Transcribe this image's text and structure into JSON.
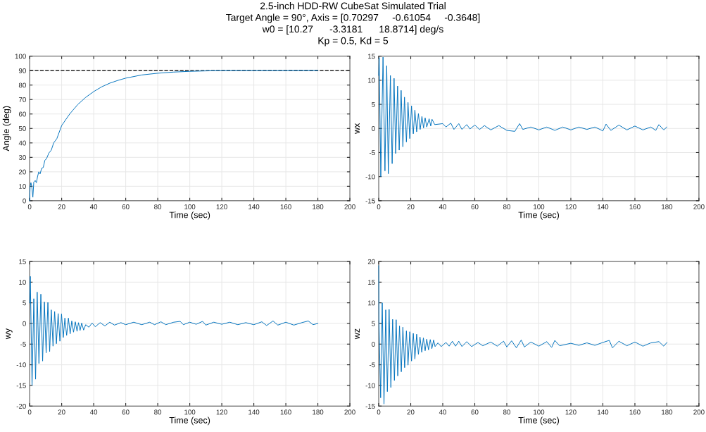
{
  "chart_data": [
    {
      "type": "line",
      "title": "2.5-inch HDD-RW CubeSat Simulated Trial\nTarget Angle = 90°, Axis = [0.70297     -0.61054     -0.3648]\nw0 = [10.27      -3.3181      18.8714] deg/s\nKp = 0.5, Kd = 5",
      "xlabel": "Time (sec)",
      "ylabel": "Angle (deg)",
      "xlim": [
        0,
        200
      ],
      "xticks": [
        0,
        20,
        40,
        60,
        80,
        100,
        120,
        140,
        160,
        180,
        200
      ],
      "ylim": [
        0,
        100
      ],
      "yticks": [
        0,
        10,
        20,
        30,
        40,
        50,
        60,
        70,
        80,
        90,
        100
      ],
      "grid": true,
      "ref_lines": [
        {
          "axis": "y",
          "value": 90,
          "color": "#262626",
          "line_style": "dashed"
        }
      ],
      "series": [
        {
          "color": "#0072bd",
          "x": [
            0,
            0.3,
            0.8,
            1.3,
            2,
            2.6,
            3.5,
            4.2,
            5,
            5.7,
            6.5,
            7.5,
            8.5,
            9.5,
            10.5,
            12,
            13.5,
            15,
            17,
            20,
            25,
            30,
            35,
            40,
            45,
            50,
            55,
            60,
            70,
            80,
            90,
            100,
            110,
            120,
            140,
            160,
            180
          ],
          "values": [
            0,
            10,
            12.5,
            10,
            2.5,
            13,
            14,
            12.5,
            17,
            20,
            18.5,
            22.5,
            23,
            28,
            29,
            33,
            35,
            40,
            43,
            52,
            60,
            66.5,
            71.5,
            75.5,
            78.8,
            81.3,
            83.2,
            84.8,
            87,
            88.2,
            89,
            89.5,
            89.8,
            90,
            90,
            90,
            90.1
          ]
        }
      ]
    },
    {
      "type": "line",
      "xlabel": "Time (sec)",
      "ylabel": "wx",
      "xlim": [
        0,
        200
      ],
      "xticks": [
        0,
        20,
        40,
        60,
        80,
        100,
        120,
        140,
        160,
        180,
        200
      ],
      "ylim": [
        -15,
        15
      ],
      "yticks": [
        -15,
        -10,
        -5,
        0,
        5,
        10,
        15
      ],
      "grid": true,
      "series": [
        {
          "color": "#0072bd",
          "x": [
            0,
            0.3,
            1.3,
            2.7,
            3.9,
            5,
            6,
            7.3,
            8.4,
            9.6,
            10.6,
            11.8,
            12.8,
            14,
            15.1,
            16.1,
            17.3,
            18.3,
            19.4,
            20.5,
            21.6,
            22.6,
            23.7,
            24.8,
            25.9,
            27,
            28,
            29,
            30,
            31.5,
            32.5,
            33.3,
            35,
            40,
            42,
            45,
            47,
            50,
            52,
            55,
            57,
            60,
            63,
            66,
            70,
            75,
            80,
            85,
            88,
            90,
            95,
            100,
            105,
            110,
            115,
            120,
            125,
            130,
            135,
            140,
            142,
            145,
            150,
            155,
            160,
            165,
            170,
            173,
            175,
            178,
            180
          ],
          "values": [
            11,
            14.7,
            -10,
            14.8,
            -8.8,
            13,
            -9.4,
            11,
            -7.3,
            10.4,
            -5.2,
            8.8,
            -4.5,
            7.9,
            -3.8,
            6.5,
            -2.8,
            5.4,
            -2.1,
            4.7,
            -1.1,
            3.8,
            -0.7,
            3.1,
            -0.2,
            2.5,
            0.1,
            2.2,
            0.3,
            2,
            0.5,
            1.9,
            0.8,
            1,
            0.3,
            1.1,
            -0.2,
            1,
            -0.2,
            0.8,
            -0.1,
            0.7,
            -0.2,
            0.6,
            -0.3,
            0.6,
            -0.4,
            -0.6,
            1,
            -0.2,
            0.3,
            -0.3,
            0.3,
            -0.4,
            0.3,
            -0.3,
            0.3,
            -0.2,
            0.3,
            -0.5,
            0.9,
            -0.4,
            0.7,
            -0.3,
            0.5,
            -0.3,
            0.3,
            -0.4,
            0.8,
            -0.3,
            0.3
          ]
        }
      ]
    },
    {
      "type": "line",
      "xlabel": "Time (sec)",
      "ylabel": "wy",
      "xlim": [
        0,
        200
      ],
      "xticks": [
        0,
        20,
        40,
        60,
        80,
        100,
        120,
        140,
        160,
        180,
        200
      ],
      "ylim": [
        -20,
        15
      ],
      "yticks": [
        -20,
        -15,
        -10,
        -5,
        0,
        5,
        10,
        15
      ],
      "grid": true,
      "series": [
        {
          "color": "#0072bd",
          "x": [
            0,
            0.4,
            1.5,
            2.6,
            3.7,
            4.7,
            5.8,
            7,
            8.1,
            9.2,
            10.3,
            11.4,
            12.5,
            13.5,
            14.6,
            15.6,
            16.7,
            17.8,
            18.9,
            19.9,
            21,
            22,
            23.1,
            24.2,
            25.3,
            26.3,
            27.4,
            28.5,
            29.6,
            30.5,
            31.5,
            32.5,
            33.7,
            35,
            37,
            39,
            41,
            44,
            47,
            50,
            53,
            57,
            60,
            65,
            70,
            75,
            78,
            82,
            85,
            90,
            94,
            96,
            100,
            104,
            108,
            110,
            115,
            120,
            125,
            130,
            135,
            140,
            145,
            148,
            152,
            155,
            160,
            165,
            170,
            174,
            177,
            180
          ],
          "values": [
            5,
            11.4,
            -15,
            6,
            -13.5,
            7.6,
            -9.7,
            7.1,
            -9.1,
            5.2,
            -7.1,
            5.1,
            -6.8,
            3.3,
            -5.5,
            2.9,
            -4.9,
            2.4,
            -4.3,
            2.3,
            -3.4,
            1.3,
            -2.9,
            1.3,
            -2.5,
            0.6,
            -2.1,
            0.4,
            -1.9,
            0.2,
            -1.7,
            0.1,
            -1.6,
            -0.3,
            -0.9,
            0.1,
            -0.8,
            0.2,
            -0.6,
            0.3,
            -0.4,
            0.2,
            -0.3,
            0.3,
            -0.3,
            0.3,
            -0.3,
            0.4,
            -0.3,
            0.3,
            0.5,
            -0.3,
            0.3,
            -0.2,
            0.5,
            -0.4,
            0.3,
            -0.2,
            0.3,
            -0.3,
            0.2,
            -0.3,
            0.4,
            -0.5,
            0.6,
            -0.4,
            0.3,
            -0.4,
            0.2,
            0.6,
            -0.3,
            0
          ]
        }
      ]
    },
    {
      "type": "line",
      "xlabel": "Time (sec)",
      "ylabel": "wz",
      "xlim": [
        0,
        200
      ],
      "xticks": [
        0,
        20,
        40,
        60,
        80,
        100,
        120,
        140,
        160,
        180,
        200
      ],
      "ylim": [
        -15,
        20
      ],
      "yticks": [
        -15,
        -10,
        -5,
        0,
        5,
        10,
        15,
        20
      ],
      "grid": true,
      "series": [
        {
          "color": "#0072bd",
          "x": [
            0,
            0.2,
            1.2,
            2.2,
            3.3,
            4.4,
            5.4,
            6.5,
            7.6,
            8.7,
            9.8,
            10.9,
            11.9,
            13,
            14.1,
            15.1,
            16.2,
            17.3,
            18.3,
            19.4,
            20.5,
            21.6,
            22.6,
            23.7,
            24.8,
            25.8,
            26.9,
            27.9,
            29,
            30,
            31.1,
            32.2,
            33.2,
            34.3,
            35.2,
            37,
            39,
            42,
            44,
            46,
            48,
            50,
            52,
            55,
            58,
            62,
            65,
            70,
            74,
            78,
            80,
            83,
            86,
            89,
            91,
            95,
            100,
            105,
            108,
            110,
            113,
            120,
            125,
            130,
            135,
            140,
            144,
            146,
            150,
            155,
            160,
            165,
            170,
            175,
            178,
            180
          ],
          "values": [
            19,
            5,
            -13,
            10,
            -14.5,
            8.3,
            -11.5,
            8.4,
            -10.5,
            6,
            -8.8,
            5.9,
            -7.7,
            4.4,
            -6.7,
            4.1,
            -5.7,
            3.2,
            -5.1,
            3,
            -4.1,
            2.6,
            -3.6,
            2.4,
            -2.5,
            1.7,
            -2,
            1.5,
            -1.6,
            1.2,
            -1.4,
            1.1,
            -1.1,
            1,
            -0.6,
            0.3,
            -0.6,
            0.4,
            -0.5,
            0.7,
            -0.5,
            0.7,
            -0.6,
            0.6,
            -0.6,
            0.4,
            -0.4,
            0.5,
            -0.5,
            0.7,
            -0.7,
            0.8,
            -0.9,
            1,
            -0.7,
            0.5,
            -0.5,
            0.6,
            -0.8,
            0.9,
            -0.4,
            0.2,
            -0.3,
            0.3,
            -0.3,
            0.4,
            0.9,
            -0.9,
            0.7,
            -0.4,
            0.5,
            -0.5,
            0.3,
            0.6,
            -0.5,
            0.4
          ]
        }
      ]
    }
  ]
}
